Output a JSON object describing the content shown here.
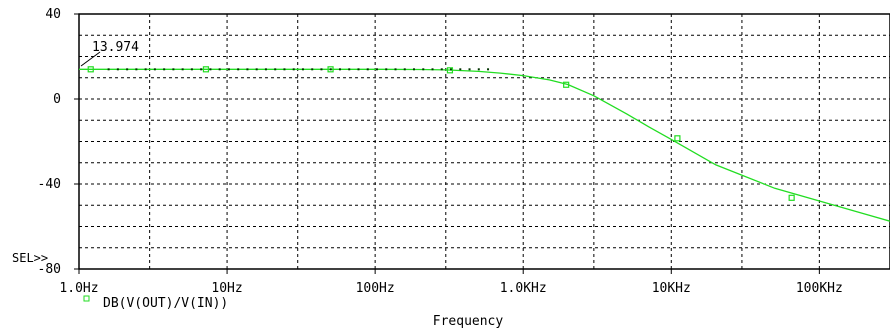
{
  "chart_data": {
    "type": "line",
    "title": "",
    "xlabel": "Frequency",
    "ylabel": "",
    "x_scale": "log",
    "xlim": [
      1,
      300000
    ],
    "ylim": [
      -80,
      40
    ],
    "x_tick_values": [
      1,
      10,
      100,
      1000,
      10000,
      100000
    ],
    "x_tick_labels": [
      "1.0Hz",
      "10Hz",
      "100Hz",
      "1.0KHz",
      "10KHz",
      "100KHz"
    ],
    "y_tick_values": [
      -80,
      -40,
      0,
      40
    ],
    "y_tick_labels": [
      "-80",
      "-40",
      "0",
      "40"
    ],
    "grid": true,
    "sel_label": "SEL>>",
    "annotation": {
      "text": "13.974",
      "x": 1,
      "y": 13.974
    },
    "series": [
      {
        "name": "DB(V(OUT)/V(IN))",
        "color": "#22dd22",
        "x": [
          1,
          2,
          5,
          10,
          20,
          50,
          100,
          200,
          300,
          500,
          700,
          1000,
          1500,
          2000,
          3000,
          5000,
          7000,
          10000,
          20000,
          50000,
          100000,
          200000,
          300000
        ],
        "y": [
          13.974,
          13.974,
          13.974,
          13.974,
          13.974,
          13.974,
          13.97,
          13.9,
          13.7,
          13.0,
          12.2,
          11.0,
          9.0,
          6.8,
          1.5,
          -7.0,
          -13.0,
          -19.0,
          -31.0,
          -42.0,
          -48.0,
          -54.0,
          -57.5
        ]
      }
    ],
    "markers": [
      {
        "x": 1.2,
        "y": 13.974
      },
      {
        "x": 7.2,
        "y": 13.974
      },
      {
        "x": 50,
        "y": 13.974
      },
      {
        "x": 320,
        "y": 13.5
      },
      {
        "x": 1950,
        "y": 6.7
      },
      {
        "x": 11000,
        "y": -18.5
      },
      {
        "x": 65000,
        "y": -46.5
      }
    ]
  }
}
